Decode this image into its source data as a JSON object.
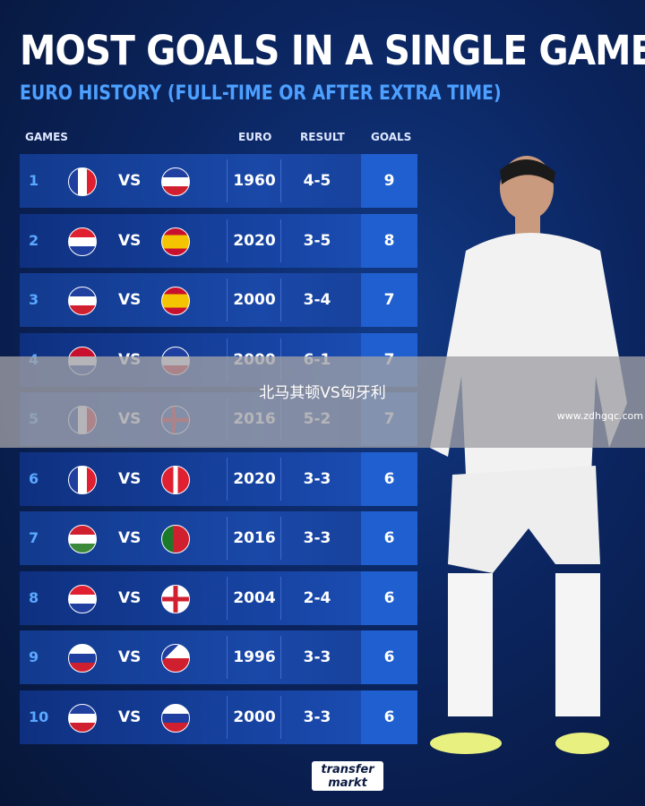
{
  "title": "MOST GOALS IN A SINGLE GAME",
  "subtitle": "EURO HISTORY (FULL-TIME OR AFTER EXTRA TIME)",
  "headers": {
    "games": "GAMES",
    "euro": "EURO",
    "result": "RESULT",
    "goals": "GOALS"
  },
  "vs": "VS",
  "rows": [
    {
      "rank": "1",
      "home": "France",
      "away": "Yugoslavia",
      "euro": "1960",
      "result": "4-5",
      "goals": "9"
    },
    {
      "rank": "2",
      "home": "Croatia",
      "away": "Spain",
      "euro": "2020",
      "result": "3-5",
      "goals": "8"
    },
    {
      "rank": "3",
      "home": "Yugoslavia",
      "away": "Spain",
      "euro": "2000",
      "result": "3-4",
      "goals": "7"
    },
    {
      "rank": "4",
      "home": "Netherlands",
      "away": "Yugoslavia",
      "euro": "2000",
      "result": "6-1",
      "goals": "7"
    },
    {
      "rank": "5",
      "home": "France",
      "away": "Iceland",
      "euro": "2016",
      "result": "5-2",
      "goals": "7"
    },
    {
      "rank": "6",
      "home": "France",
      "away": "Switzerland",
      "euro": "2020",
      "result": "3-3",
      "goals": "6"
    },
    {
      "rank": "7",
      "home": "Hungary",
      "away": "Portugal",
      "euro": "2016",
      "result": "3-3",
      "goals": "6"
    },
    {
      "rank": "8",
      "home": "Croatia",
      "away": "England",
      "euro": "2004",
      "result": "2-4",
      "goals": "6"
    },
    {
      "rank": "9",
      "home": "Russia",
      "away": "Czech Republic",
      "euro": "1996",
      "result": "3-3",
      "goals": "6"
    },
    {
      "rank": "10",
      "home": "Yugoslavia",
      "away": "Slovenia",
      "euro": "2000",
      "result": "3-3",
      "goals": "6"
    }
  ],
  "overlay_text": "北马其顿VS匈牙利",
  "watermark": "www.zdhgqc.com",
  "logo": {
    "line1": "transfer",
    "line2": "markt"
  },
  "colors": {
    "accent": "#4da0ff",
    "goals_col": "#1f5fcf"
  }
}
